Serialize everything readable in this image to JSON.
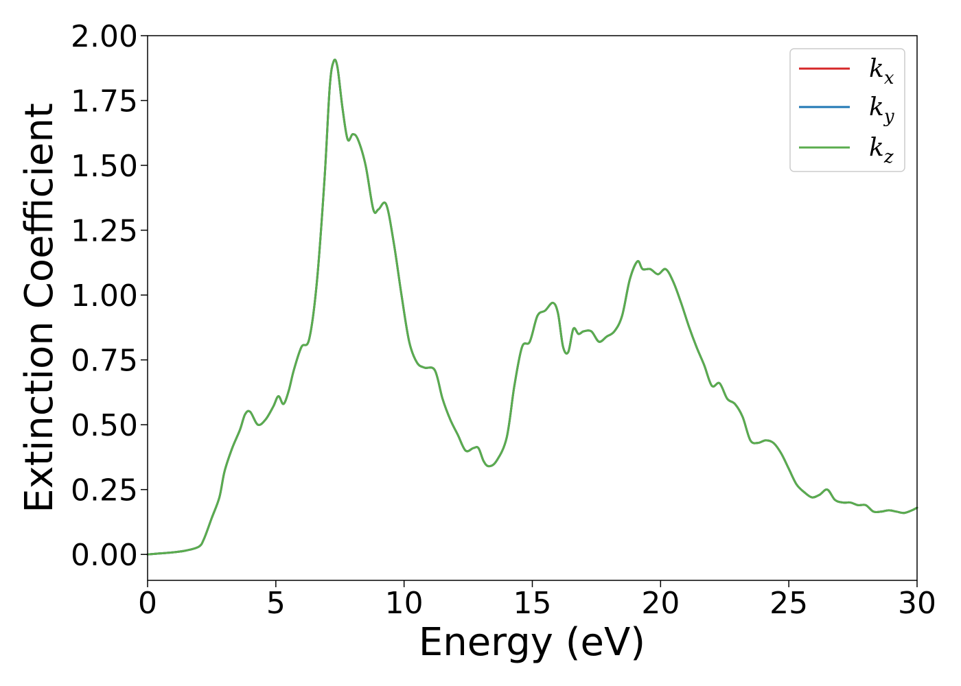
{
  "chart_data": {
    "type": "line",
    "xlabel": "Energy (eV)",
    "ylabel": "Extinction Coefficient",
    "xlim": [
      0,
      30
    ],
    "ylim": [
      -0.1,
      2.0
    ],
    "x_ticks": [
      0,
      5,
      10,
      15,
      20,
      25,
      30
    ],
    "y_ticks": [
      0.0,
      0.25,
      0.5,
      0.75,
      1.0,
      1.25,
      1.5,
      1.75,
      2.0
    ],
    "x_tick_labels": [
      "0",
      "5",
      "10",
      "15",
      "20",
      "25",
      "30"
    ],
    "y_tick_labels": [
      "0.00",
      "0.25",
      "0.50",
      "0.75",
      "1.00",
      "1.25",
      "1.50",
      "1.75",
      "2.00"
    ],
    "grid": false,
    "legend_position": "top-right",
    "x": [
      0,
      0.5,
      1.0,
      1.5,
      2.0,
      2.2,
      2.5,
      2.8,
      3.0,
      3.3,
      3.6,
      3.8,
      4.0,
      4.3,
      4.6,
      4.9,
      5.1,
      5.3,
      5.5,
      5.7,
      6.0,
      6.3,
      6.6,
      6.9,
      7.1,
      7.25,
      7.4,
      7.6,
      7.8,
      8.0,
      8.2,
      8.5,
      8.8,
      9.0,
      9.3,
      9.6,
      9.9,
      10.2,
      10.5,
      10.8,
      11.2,
      11.5,
      11.8,
      12.1,
      12.4,
      12.7,
      12.9,
      13.1,
      13.3,
      13.6,
      14.0,
      14.3,
      14.6,
      14.9,
      15.2,
      15.5,
      15.8,
      16.0,
      16.2,
      16.4,
      16.6,
      16.8,
      17.0,
      17.3,
      17.6,
      17.9,
      18.2,
      18.5,
      18.8,
      19.1,
      19.3,
      19.6,
      19.9,
      20.2,
      20.5,
      20.8,
      21.1,
      21.4,
      21.7,
      22.0,
      22.3,
      22.6,
      22.9,
      23.2,
      23.5,
      23.8,
      24.1,
      24.4,
      24.7,
      25.0,
      25.3,
      25.6,
      25.9,
      26.2,
      26.5,
      26.8,
      27.1,
      27.4,
      27.7,
      28.0,
      28.3,
      28.6,
      28.9,
      29.2,
      29.5,
      29.8,
      30.0
    ],
    "series": [
      {
        "name": "k_x",
        "name_base": "k",
        "name_sub": "x",
        "color": "#d62728",
        "values": [
          0.0,
          0.004,
          0.008,
          0.015,
          0.03,
          0.06,
          0.14,
          0.22,
          0.32,
          0.41,
          0.48,
          0.54,
          0.55,
          0.5,
          0.52,
          0.57,
          0.61,
          0.58,
          0.63,
          0.71,
          0.8,
          0.83,
          1.05,
          1.45,
          1.8,
          1.9,
          1.88,
          1.72,
          1.6,
          1.62,
          1.6,
          1.5,
          1.33,
          1.33,
          1.35,
          1.2,
          1.0,
          0.82,
          0.74,
          0.72,
          0.71,
          0.6,
          0.52,
          0.46,
          0.4,
          0.41,
          0.41,
          0.36,
          0.34,
          0.36,
          0.45,
          0.65,
          0.8,
          0.82,
          0.92,
          0.94,
          0.97,
          0.93,
          0.8,
          0.78,
          0.87,
          0.85,
          0.86,
          0.86,
          0.82,
          0.84,
          0.86,
          0.92,
          1.06,
          1.13,
          1.1,
          1.1,
          1.08,
          1.1,
          1.05,
          0.97,
          0.88,
          0.8,
          0.73,
          0.65,
          0.66,
          0.6,
          0.58,
          0.53,
          0.44,
          0.43,
          0.44,
          0.43,
          0.39,
          0.33,
          0.27,
          0.24,
          0.22,
          0.23,
          0.25,
          0.21,
          0.2,
          0.2,
          0.19,
          0.19,
          0.165,
          0.165,
          0.17,
          0.165,
          0.16,
          0.17,
          0.18
        ]
      },
      {
        "name": "k_y",
        "name_base": "k",
        "name_sub": "y",
        "color": "#1f77b4",
        "values": [
          0.0,
          0.004,
          0.008,
          0.015,
          0.03,
          0.06,
          0.14,
          0.22,
          0.32,
          0.41,
          0.48,
          0.54,
          0.55,
          0.5,
          0.52,
          0.57,
          0.61,
          0.58,
          0.63,
          0.71,
          0.8,
          0.83,
          1.05,
          1.45,
          1.8,
          1.9,
          1.88,
          1.72,
          1.6,
          1.62,
          1.6,
          1.5,
          1.33,
          1.33,
          1.35,
          1.2,
          1.0,
          0.82,
          0.74,
          0.72,
          0.71,
          0.6,
          0.52,
          0.46,
          0.4,
          0.41,
          0.41,
          0.36,
          0.34,
          0.36,
          0.45,
          0.65,
          0.8,
          0.82,
          0.92,
          0.94,
          0.97,
          0.93,
          0.8,
          0.78,
          0.87,
          0.85,
          0.86,
          0.86,
          0.82,
          0.84,
          0.86,
          0.92,
          1.06,
          1.13,
          1.1,
          1.1,
          1.08,
          1.1,
          1.05,
          0.97,
          0.88,
          0.8,
          0.73,
          0.65,
          0.66,
          0.6,
          0.58,
          0.53,
          0.44,
          0.43,
          0.44,
          0.43,
          0.39,
          0.33,
          0.27,
          0.24,
          0.22,
          0.23,
          0.25,
          0.21,
          0.2,
          0.2,
          0.19,
          0.19,
          0.165,
          0.165,
          0.17,
          0.165,
          0.16,
          0.17,
          0.18
        ]
      },
      {
        "name": "k_z",
        "name_base": "k",
        "name_sub": "z",
        "color": "#5aac4e",
        "values": [
          0.0,
          0.004,
          0.008,
          0.015,
          0.03,
          0.06,
          0.14,
          0.22,
          0.32,
          0.41,
          0.48,
          0.54,
          0.55,
          0.5,
          0.52,
          0.57,
          0.61,
          0.58,
          0.63,
          0.71,
          0.8,
          0.83,
          1.05,
          1.45,
          1.8,
          1.9,
          1.88,
          1.72,
          1.6,
          1.62,
          1.6,
          1.5,
          1.33,
          1.33,
          1.35,
          1.2,
          1.0,
          0.82,
          0.74,
          0.72,
          0.71,
          0.6,
          0.52,
          0.46,
          0.4,
          0.41,
          0.41,
          0.36,
          0.34,
          0.36,
          0.45,
          0.65,
          0.8,
          0.82,
          0.92,
          0.94,
          0.97,
          0.93,
          0.8,
          0.78,
          0.87,
          0.85,
          0.86,
          0.86,
          0.82,
          0.84,
          0.86,
          0.92,
          1.06,
          1.13,
          1.1,
          1.1,
          1.08,
          1.1,
          1.05,
          0.97,
          0.88,
          0.8,
          0.73,
          0.65,
          0.66,
          0.6,
          0.58,
          0.53,
          0.44,
          0.43,
          0.44,
          0.43,
          0.39,
          0.33,
          0.27,
          0.24,
          0.22,
          0.23,
          0.25,
          0.21,
          0.2,
          0.2,
          0.19,
          0.19,
          0.165,
          0.165,
          0.17,
          0.165,
          0.16,
          0.17,
          0.18
        ]
      }
    ]
  }
}
